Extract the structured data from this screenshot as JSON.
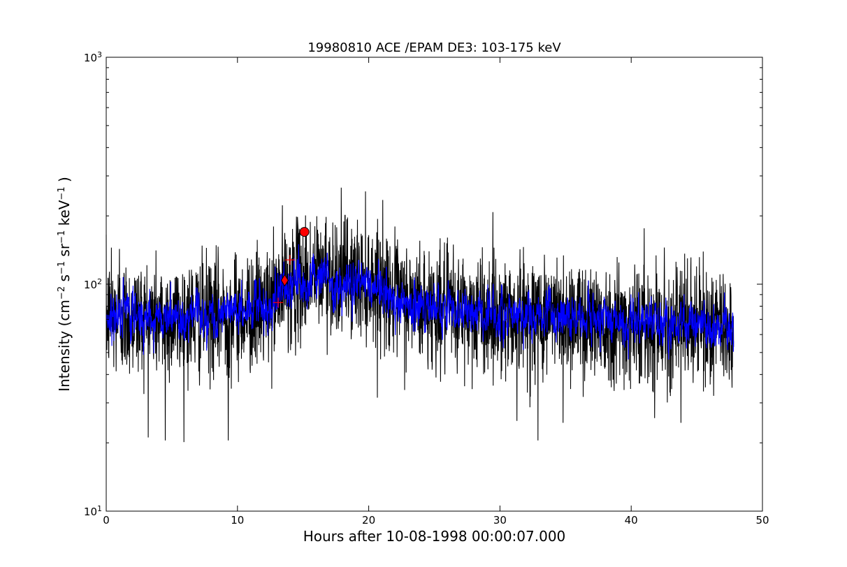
{
  "chart_data": {
    "type": "line",
    "title": "19980810 ACE /EPAM DE3: 103-175 keV",
    "xlabel": "Hours after 10-08-1998 00:00:07.000",
    "ylabel": {
      "prefix": "Intensity (cm",
      "exp1": "−2",
      "mid1": " s",
      "exp2": "−1",
      "mid2": " sr",
      "exp3": "−1",
      "mid3": " keV",
      "exp4": "−1",
      "suffix": " )"
    },
    "xlim": [
      0,
      50
    ],
    "ylim": [
      10,
      1000
    ],
    "yscale": "log",
    "grid": false,
    "x_ticks": [
      0,
      10,
      20,
      30,
      40,
      50
    ],
    "x_tick_labels": [
      "0",
      "10",
      "20",
      "30",
      "40",
      "50"
    ],
    "y_ticks": [
      {
        "value": 10,
        "base": "10",
        "exp": "1"
      },
      {
        "value": 100,
        "base": "10",
        "exp": "2"
      },
      {
        "value": 1000,
        "base": "10",
        "exp": "3"
      }
    ],
    "series": [
      {
        "color": "#000000",
        "style": "raw",
        "x_range": [
          0,
          47.8
        ],
        "profile": [
          [
            0,
            72
          ],
          [
            5,
            70
          ],
          [
            10,
            74
          ],
          [
            12.5,
            80
          ],
          [
            13.5,
            98
          ],
          [
            15,
            106
          ],
          [
            16.5,
            112
          ],
          [
            18,
            108
          ],
          [
            20,
            104
          ],
          [
            21.5,
            96
          ],
          [
            22,
            86
          ],
          [
            25,
            78
          ],
          [
            30,
            74
          ],
          [
            35,
            72
          ],
          [
            40,
            68
          ],
          [
            45,
            66
          ],
          [
            47.8,
            64
          ]
        ],
        "spread_dex": 0.13,
        "extremes": [
          {
            "x": 4.5,
            "y": 20.5
          },
          {
            "x": 9.3,
            "y": 20.5
          },
          {
            "x": 32.9,
            "y": 20.5
          },
          {
            "x": 31.3,
            "y": 25
          },
          {
            "x": 34.8,
            "y": 24.5
          },
          {
            "x": 43.8,
            "y": 24.5
          },
          {
            "x": 16.7,
            "y": 186
          },
          {
            "x": 15.9,
            "y": 180
          },
          {
            "x": 0.4,
            "y": 145
          },
          {
            "x": 1.0,
            "y": 143
          }
        ]
      },
      {
        "color": "#0000ff",
        "style": "smoothed",
        "x_range": [
          0,
          47.8
        ],
        "profile": [
          [
            0,
            74
          ],
          [
            5,
            72
          ],
          [
            10,
            76
          ],
          [
            12.5,
            82
          ],
          [
            13.5,
            98
          ],
          [
            15,
            104
          ],
          [
            16.5,
            108
          ],
          [
            18,
            104
          ],
          [
            20,
            100
          ],
          [
            21.5,
            94
          ],
          [
            22,
            86
          ],
          [
            25,
            78
          ],
          [
            30,
            74
          ],
          [
            35,
            72
          ],
          [
            40,
            68
          ],
          [
            45,
            66
          ],
          [
            47.8,
            64
          ]
        ],
        "spread_dex": 0.06
      }
    ],
    "markers": [
      {
        "shape": "circle",
        "x": 15.1,
        "y": 170,
        "color": "#ff0000",
        "edge": "#000000"
      },
      {
        "shape": "diamond",
        "x": 13.6,
        "y": 104,
        "color": "#ff0000",
        "edge": "#000000"
      },
      {
        "shape": "plus",
        "x": 14.0,
        "y": 128,
        "color": "#ff0000"
      },
      {
        "shape": "plus",
        "x": 13.1,
        "y": 83,
        "color": "#ff0000"
      }
    ],
    "colors": {
      "axes": "#000000",
      "background": "#ffffff"
    }
  }
}
